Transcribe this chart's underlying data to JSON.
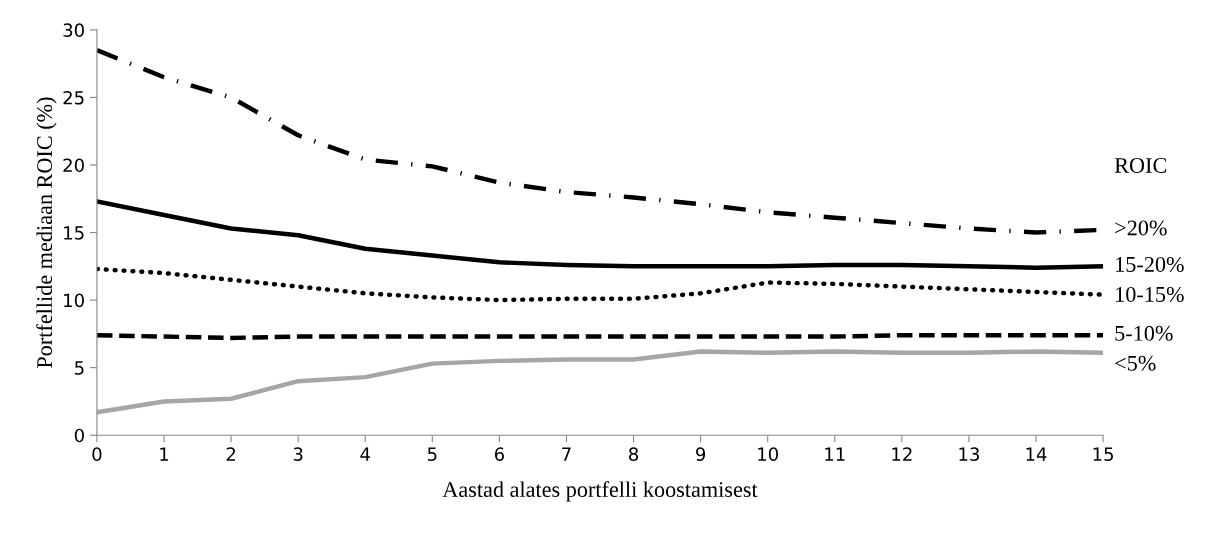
{
  "chart_data": {
    "type": "line",
    "xlabel": "Aastad alates portfelli koostamisest",
    "ylabel": "Portfellide mediaan ROIC (%)",
    "legend_title": "ROIC",
    "x": [
      0,
      1,
      2,
      3,
      4,
      5,
      6,
      7,
      8,
      9,
      10,
      11,
      12,
      13,
      14,
      15
    ],
    "xlim": [
      0,
      15
    ],
    "xticks": [
      0,
      1,
      2,
      3,
      4,
      5,
      6,
      7,
      8,
      9,
      10,
      11,
      12,
      13,
      14,
      15
    ],
    "ylim": [
      0,
      30
    ],
    "yticks": [
      0,
      5,
      10,
      15,
      20,
      25,
      30
    ],
    "grid": false,
    "marker": "none",
    "series": [
      {
        "name": ">20%",
        "color": "#000000",
        "line_style": "dashdot",
        "values": [
          28.5,
          26.5,
          25.0,
          22.2,
          20.4,
          19.9,
          18.7,
          18.0,
          17.6,
          17.1,
          16.5,
          16.1,
          15.7,
          15.3,
          15.0,
          15.2
        ]
      },
      {
        "name": "15-20%",
        "color": "#000000",
        "line_style": "solid",
        "values": [
          17.3,
          16.3,
          15.3,
          14.8,
          13.8,
          13.3,
          12.8,
          12.6,
          12.5,
          12.5,
          12.5,
          12.6,
          12.6,
          12.5,
          12.4,
          12.5
        ]
      },
      {
        "name": "10-15%",
        "color": "#000000",
        "line_style": "dotted",
        "values": [
          12.3,
          12.0,
          11.5,
          11.0,
          10.5,
          10.2,
          10.0,
          10.1,
          10.1,
          10.5,
          11.3,
          11.2,
          11.0,
          10.8,
          10.6,
          10.4
        ]
      },
      {
        "name": "5-10%",
        "color": "#000000",
        "line_style": "dashed",
        "values": [
          7.4,
          7.3,
          7.2,
          7.3,
          7.3,
          7.3,
          7.3,
          7.3,
          7.3,
          7.3,
          7.3,
          7.3,
          7.4,
          7.4,
          7.4,
          7.4
        ]
      },
      {
        "name": "<5%",
        "color": "#a6a6a6",
        "line_style": "solid",
        "values": [
          1.7,
          2.5,
          2.7,
          4.0,
          4.3,
          5.3,
          5.5,
          5.6,
          5.6,
          6.2,
          6.1,
          6.2,
          6.1,
          6.1,
          6.2,
          6.1
        ]
      }
    ]
  }
}
